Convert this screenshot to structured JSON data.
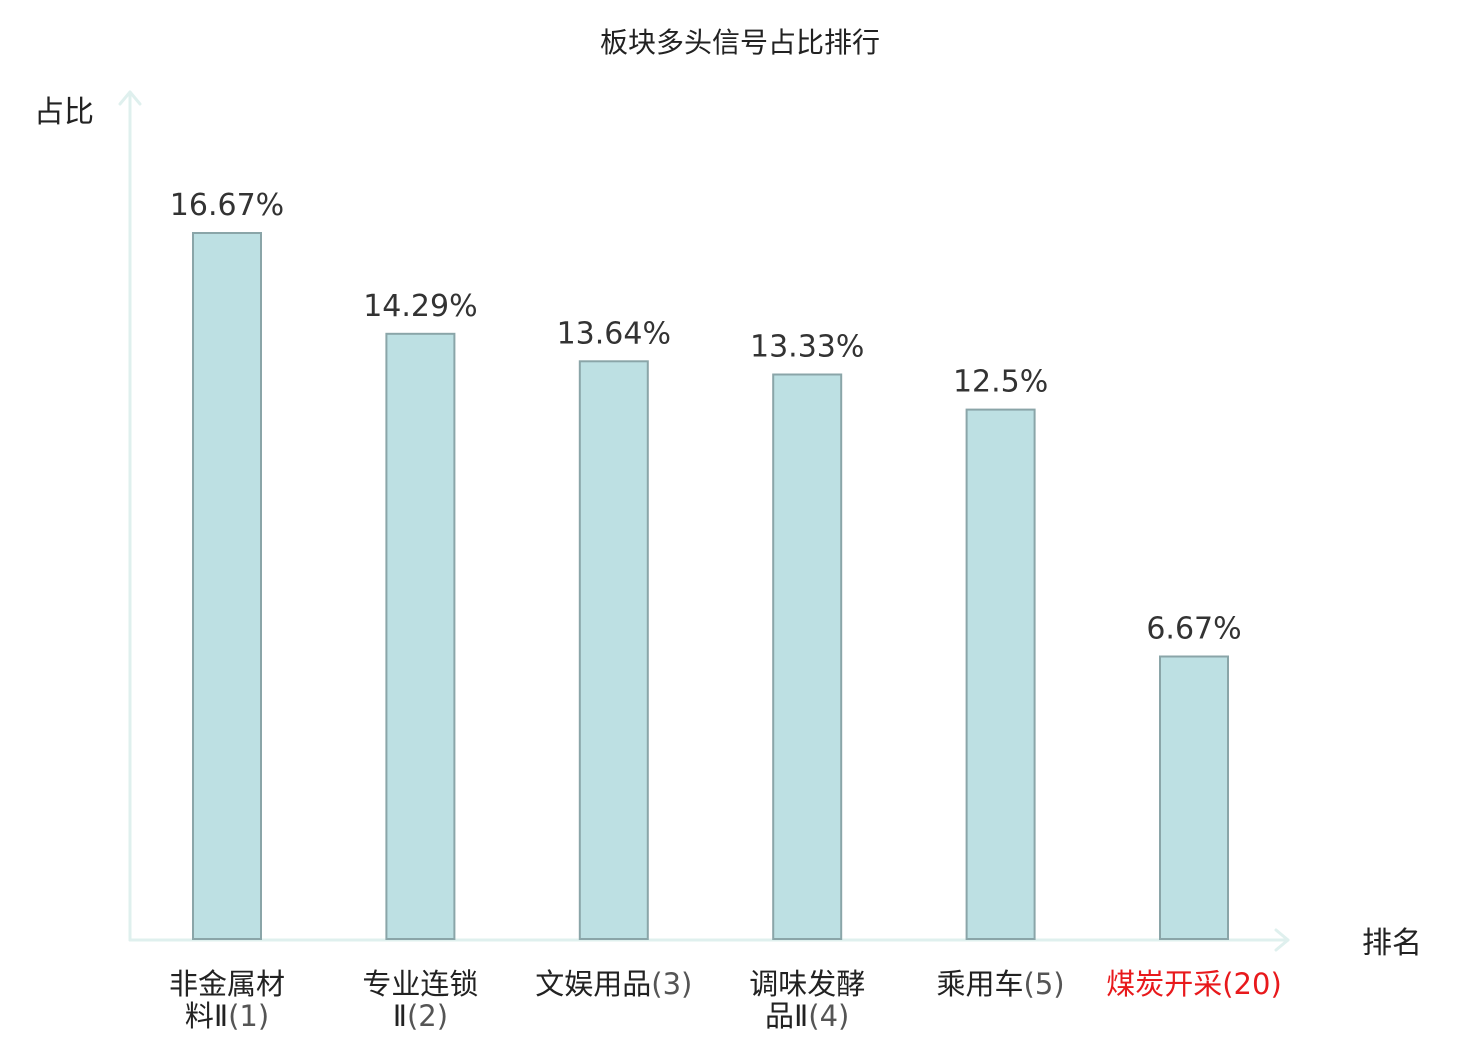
{
  "chart_data": {
    "type": "bar",
    "title": "板块多头信号占比排行",
    "ylabel": "占比",
    "xlabel": "排名",
    "ylim": [
      0,
      20
    ],
    "grid": false,
    "legend": "none",
    "categories": [
      {
        "lines": [
          "非金属材",
          "料Ⅱ"
        ],
        "rank": "(1)",
        "highlight": false
      },
      {
        "lines": [
          "专业连锁",
          "Ⅱ"
        ],
        "rank": "(2)",
        "highlight": false
      },
      {
        "lines": [
          "文娱用品"
        ],
        "rank": "(3)",
        "highlight": false
      },
      {
        "lines": [
          "调味发酵",
          "品Ⅱ"
        ],
        "rank": "(4)",
        "highlight": false
      },
      {
        "lines": [
          "乘用车"
        ],
        "rank": "(5)",
        "highlight": false
      },
      {
        "lines": [
          "煤炭开采"
        ],
        "rank": "(20)",
        "highlight": true
      }
    ],
    "values": [
      16.67,
      14.29,
      13.64,
      13.33,
      12.5,
      6.67
    ],
    "value_labels": [
      "16.67%",
      "14.29%",
      "13.64%",
      "13.33%",
      "12.5%",
      "6.67%"
    ],
    "colors": {
      "bar_fill": "#bde0e3",
      "bar_stroke": "#8aa5a8",
      "axis": "#dff0ee",
      "text": "#222222",
      "highlight": "#e8191c"
    }
  }
}
